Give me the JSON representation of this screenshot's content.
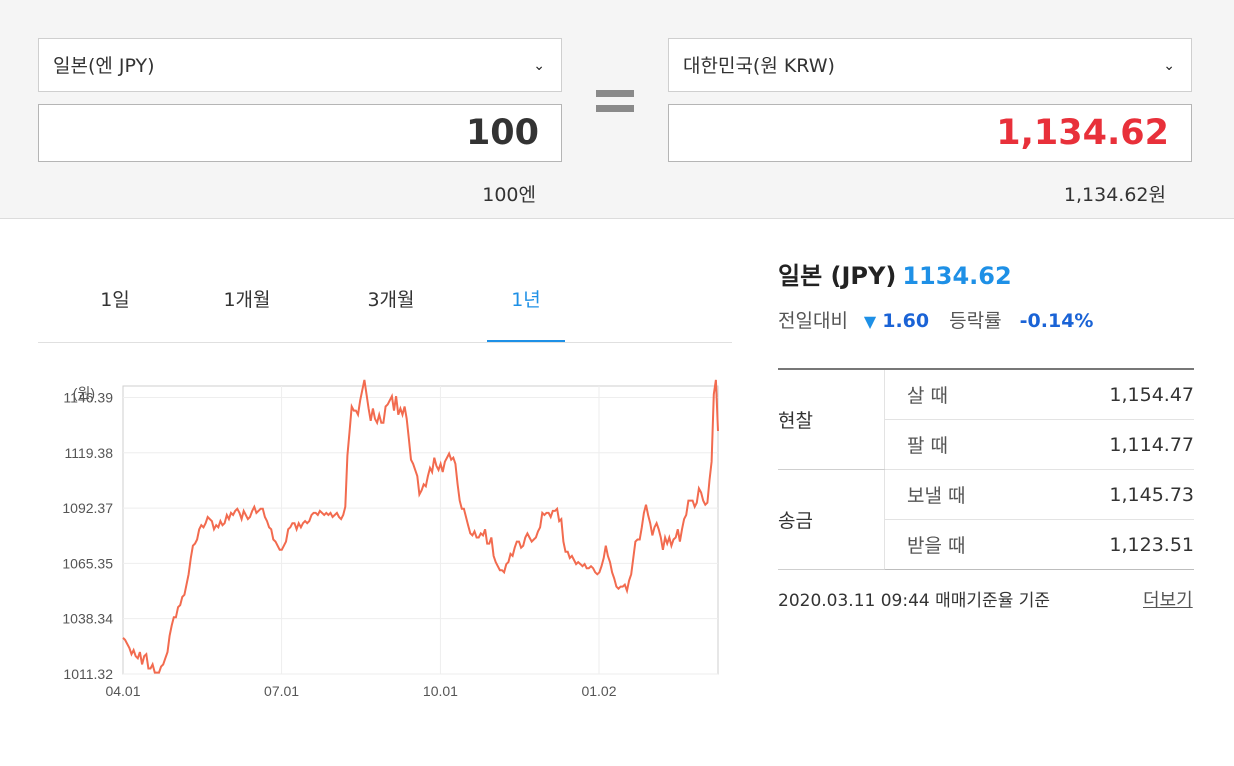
{
  "converter": {
    "from_currency": "일본(엔 JPY)",
    "from_amount": "100",
    "from_caption": "100엔",
    "to_currency": "대한민국(원 KRW)",
    "to_amount": "1,134.62",
    "to_caption": "1,134.62원",
    "chevron_glyph": "⌄"
  },
  "tabs": [
    {
      "label": "1일",
      "active": false
    },
    {
      "label": "1개월",
      "active": false
    },
    {
      "label": "3개월",
      "active": false
    },
    {
      "label": "1년",
      "active": true
    }
  ],
  "info": {
    "title": "일본 (JPY)",
    "rate": "1134.62",
    "prev_label": "전일대비",
    "change_symbol": "▼",
    "change": "1.60",
    "pct_label": "등락률",
    "pct": "-0.14%"
  },
  "rates": [
    {
      "group": "현찰",
      "kind": "살 때",
      "value": "1,154.47"
    },
    {
      "group": "",
      "kind": "팔 때",
      "value": "1,114.77"
    },
    {
      "group": "송금",
      "kind": "보낼 때",
      "value": "1,145.73"
    },
    {
      "group": "",
      "kind": "받을 때",
      "value": "1,123.51"
    }
  ],
  "footer": {
    "date": "2020.03.11 09:44  매매기준율 기준",
    "more": "더보기"
  },
  "colors": {
    "accent_blue": "#1e90e6",
    "red": "#e8303a",
    "line": "#f26b4f"
  },
  "chart_data": {
    "type": "line",
    "unit_label": "(원)",
    "y_ticks": [
      "1146.39",
      "1119.38",
      "1092.37",
      "1065.35",
      "1038.34",
      "1011.32"
    ],
    "ylim": [
      1011.32,
      1152.0
    ],
    "x_ticks": [
      "04.01",
      "07.01",
      "10.01",
      "01.02"
    ],
    "grid": true,
    "series": [
      {
        "values": [
          1029,
          1028,
          1026,
          1024,
          1021,
          1023,
          1020,
          1019,
          1022,
          1016,
          1020,
          1021,
          1014,
          1014,
          1016,
          1012,
          1012,
          1012,
          1015,
          1016,
          1019,
          1022,
          1030,
          1035,
          1039,
          1039,
          1044,
          1045,
          1049,
          1050,
          1055,
          1060,
          1068,
          1074,
          1075,
          1077,
          1082,
          1084,
          1083,
          1085,
          1088,
          1087,
          1086,
          1082,
          1084,
          1083,
          1086,
          1084,
          1085,
          1089,
          1087,
          1090,
          1089,
          1091,
          1092,
          1090,
          1087,
          1091,
          1089,
          1087,
          1088,
          1091,
          1093,
          1090,
          1091,
          1092,
          1092,
          1088,
          1086,
          1083,
          1082,
          1077,
          1076,
          1074,
          1072,
          1072,
          1074,
          1076,
          1082,
          1083,
          1085,
          1085,
          1082,
          1085,
          1083,
          1085,
          1086,
          1085,
          1086,
          1089,
          1090,
          1090,
          1089,
          1091,
          1090,
          1089,
          1090,
          1089,
          1090,
          1088,
          1089,
          1090,
          1088,
          1087,
          1089,
          1093,
          1118,
          1130,
          1142,
          1140,
          1140,
          1138,
          1145,
          1150,
          1155,
          1148,
          1141,
          1135,
          1141,
          1136,
          1134,
          1138,
          1134,
          1134,
          1142,
          1143,
          1145,
          1147,
          1140,
          1147,
          1138,
          1141,
          1138,
          1142,
          1136,
          1126,
          1116,
          1114,
          1111,
          1108,
          1099,
          1101,
          1104,
          1103,
          1108,
          1112,
          1110,
          1117,
          1113,
          1111,
          1114,
          1110,
          1115,
          1117,
          1119,
          1116,
          1117,
          1114,
          1104,
          1096,
          1092,
          1092,
          1088,
          1084,
          1080,
          1079,
          1081,
          1078,
          1078,
          1080,
          1079,
          1082,
          1075,
          1075,
          1078,
          1069,
          1066,
          1064,
          1062,
          1062,
          1061,
          1065,
          1066,
          1070,
          1069,
          1073,
          1076,
          1076,
          1073,
          1074,
          1078,
          1080,
          1078,
          1076,
          1077,
          1078,
          1081,
          1083,
          1090,
          1089,
          1090,
          1090,
          1088,
          1091,
          1091,
          1092,
          1086,
          1087,
          1076,
          1071,
          1071,
          1068,
          1069,
          1067,
          1065,
          1066,
          1065,
          1064,
          1065,
          1063,
          1063,
          1064,
          1063,
          1061,
          1060,
          1061,
          1064,
          1068,
          1074,
          1069,
          1066,
          1061,
          1058,
          1054,
          1053,
          1054,
          1054,
          1055,
          1052,
          1057,
          1060,
          1068,
          1076,
          1077,
          1077,
          1083,
          1090,
          1094,
          1089,
          1085,
          1079,
          1083,
          1085,
          1082,
          1078,
          1072,
          1078,
          1075,
          1078,
          1074,
          1077,
          1078,
          1082,
          1076,
          1082,
          1087,
          1089,
          1096,
          1096,
          1096,
          1093,
          1095,
          1102,
          1100,
          1096,
          1094,
          1095,
          1106,
          1115,
          1148,
          1155,
          1130
        ]
      }
    ]
  }
}
